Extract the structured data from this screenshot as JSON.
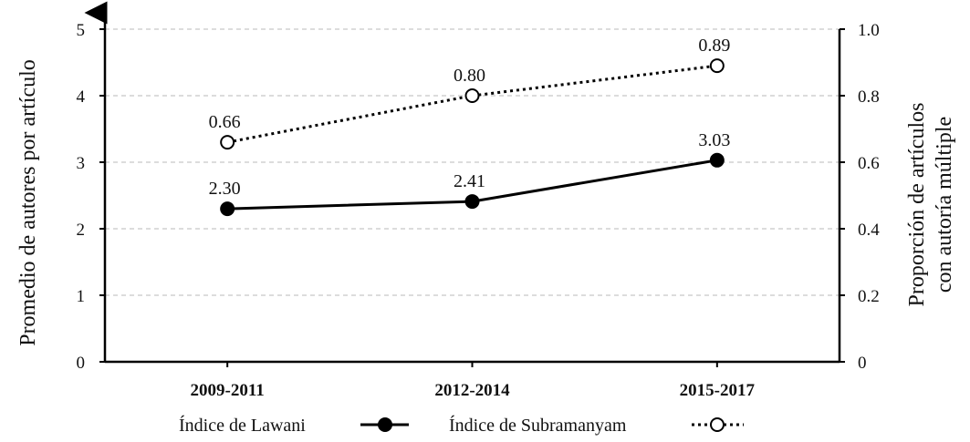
{
  "chart_data": {
    "type": "line",
    "categories": [
      "2009-2011",
      "2012-2014",
      "2015-2017"
    ],
    "y_left": {
      "label": "Promedio de autores por artículo",
      "lim": [
        0,
        5
      ],
      "ticks": [
        "0",
        "1",
        "2",
        "3",
        "4",
        "5"
      ]
    },
    "y_right": {
      "label_lines": [
        "Proporción de artículos",
        "con autoría múltiple"
      ],
      "lim": [
        0,
        1.0
      ],
      "ticks": [
        "0",
        "0.2",
        "0.4",
        "0.6",
        "0.8",
        "1.0"
      ]
    },
    "series": [
      {
        "name": "Índice de Lawani",
        "axis": "left",
        "values": [
          2.3,
          2.41,
          3.03
        ],
        "labels": [
          "2.30",
          "2.41",
          "3.03"
        ],
        "style": "solid",
        "marker": "filled-circle"
      },
      {
        "name": "Índice de Subramanyam",
        "axis": "right",
        "values": [
          0.66,
          0.8,
          0.89
        ],
        "labels": [
          "0.66",
          "0.80",
          "0.89"
        ],
        "style": "dotted",
        "marker": "open-circle"
      }
    ],
    "grid": true,
    "legend_position": "bottom"
  }
}
